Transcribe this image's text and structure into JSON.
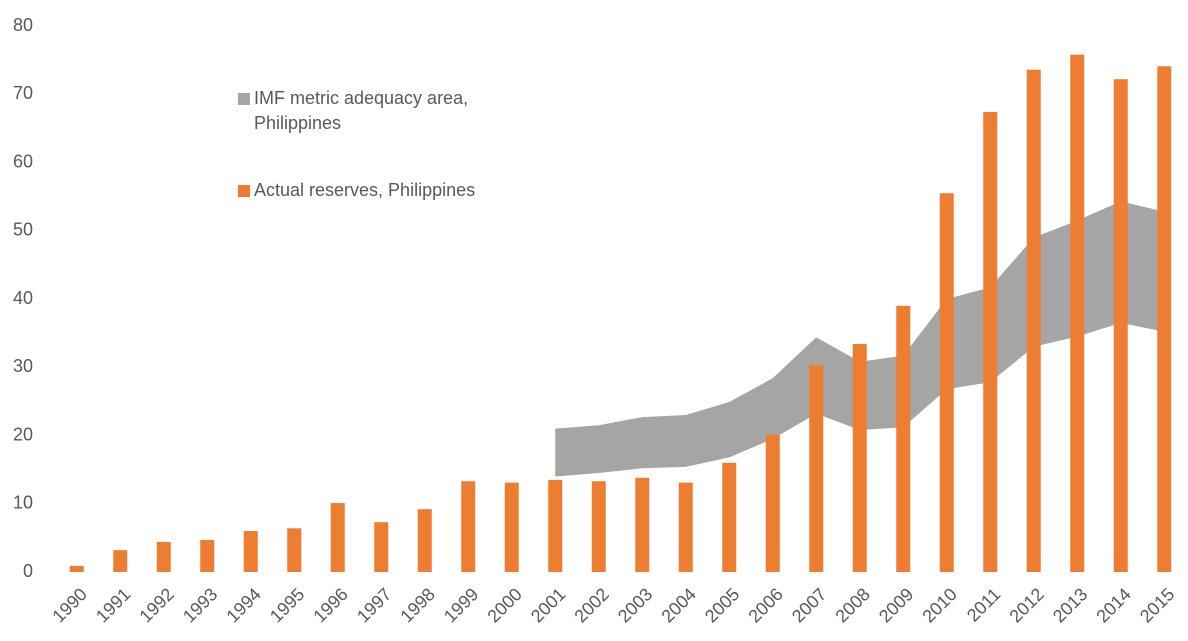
{
  "chart_data": {
    "type": "bar",
    "categories": [
      "1990",
      "1991",
      "1992",
      "1993",
      "1994",
      "1995",
      "1996",
      "1997",
      "1998",
      "1999",
      "2000",
      "2001",
      "2002",
      "2003",
      "2004",
      "2005",
      "2006",
      "2007",
      "2008",
      "2009",
      "2010",
      "2011",
      "2012",
      "2013",
      "2014",
      "2015"
    ],
    "series": [
      {
        "name": "IMF metric adequacy area, Philippines",
        "type": "range_area",
        "color": "#a5a5a5",
        "lower": [
          null,
          null,
          null,
          null,
          null,
          null,
          null,
          null,
          null,
          null,
          null,
          14.0,
          14.5,
          15.2,
          15.4,
          16.8,
          19.5,
          23.2,
          20.8,
          21.2,
          26.8,
          27.8,
          33.0,
          34.5,
          36.5,
          35.2
        ],
        "upper": [
          null,
          null,
          null,
          null,
          null,
          null,
          null,
          null,
          null,
          null,
          null,
          21.0,
          21.5,
          22.7,
          23.0,
          24.9,
          28.4,
          34.4,
          30.8,
          31.7,
          40.0,
          41.7,
          49.0,
          51.5,
          54.3,
          52.8
        ]
      },
      {
        "name": "Actual reserves, Philippines",
        "type": "bar",
        "color": "#ed7d31",
        "values": [
          0.9,
          3.2,
          4.4,
          4.7,
          6.0,
          6.4,
          10.1,
          7.3,
          9.2,
          13.3,
          13.1,
          13.5,
          13.3,
          13.8,
          13.1,
          16.0,
          20.1,
          30.3,
          33.4,
          39.0,
          55.5,
          67.4,
          73.6,
          75.8,
          72.2,
          74.1
        ]
      }
    ],
    "ylim": [
      0,
      80
    ],
    "yticks": [
      0,
      10,
      20,
      30,
      40,
      50,
      60,
      70,
      80
    ],
    "grid": false,
    "legend_position": "top-left"
  }
}
